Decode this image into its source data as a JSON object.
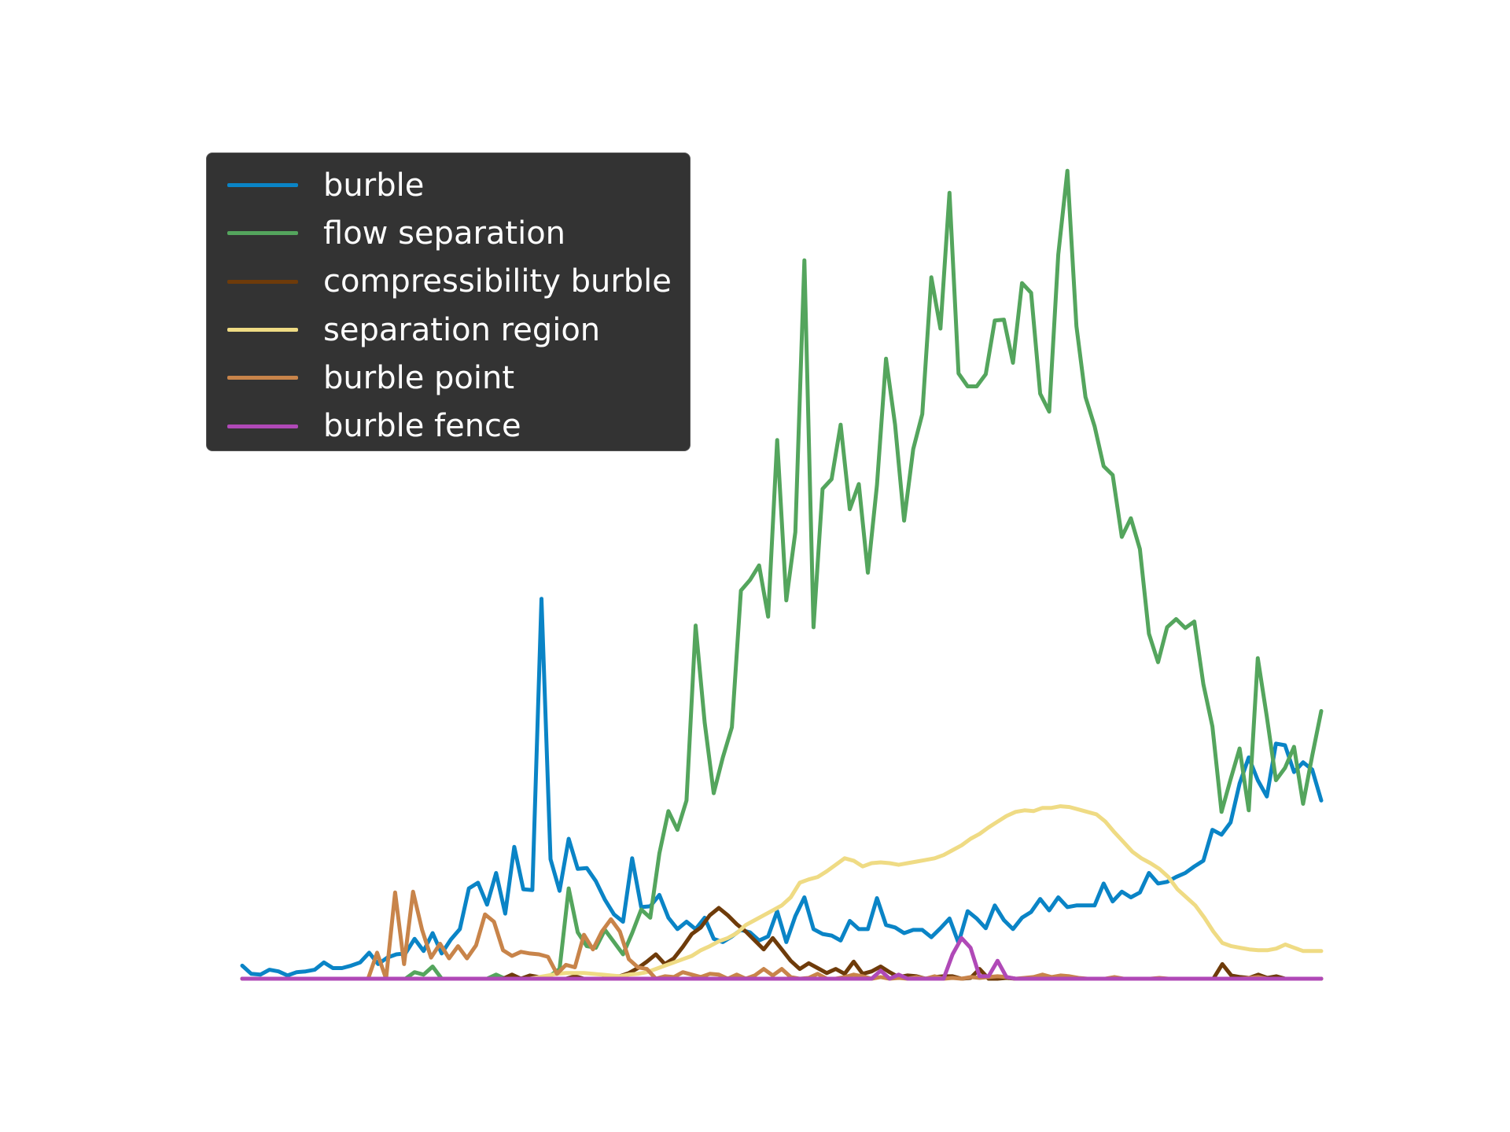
{
  "chart_data": {
    "type": "line",
    "title": "",
    "xlabel": "",
    "ylabel": "",
    "axes_visible": false,
    "grid": false,
    "legend_position": "upper-left",
    "legend_background": "#333333",
    "legend_text_color": "#ffffff",
    "x_range": [
      0,
      120
    ],
    "y_range": [
      0,
      1
    ],
    "series": [
      {
        "name": "burble",
        "color": "#0a84c6",
        "values": [
          0.016,
          0.006,
          0.005,
          0.011,
          0.009,
          0.004,
          0.008,
          0.009,
          0.011,
          0.02,
          0.013,
          0.013,
          0.016,
          0.02,
          0.032,
          0.018,
          0.026,
          0.03,
          0.031,
          0.049,
          0.034,
          0.056,
          0.031,
          0.048,
          0.061,
          0.111,
          0.118,
          0.091,
          0.13,
          0.08,
          0.162,
          0.11,
          0.109,
          0.467,
          0.147,
          0.108,
          0.172,
          0.135,
          0.136,
          0.12,
          0.097,
          0.079,
          0.07,
          0.148,
          0.088,
          0.089,
          0.103,
          0.075,
          0.061,
          0.07,
          0.061,
          0.075,
          0.049,
          0.045,
          0.052,
          0.06,
          0.057,
          0.047,
          0.052,
          0.083,
          0.045,
          0.077,
          0.1,
          0.061,
          0.055,
          0.053,
          0.047,
          0.071,
          0.061,
          0.061,
          0.099,
          0.066,
          0.063,
          0.056,
          0.06,
          0.06,
          0.051,
          0.062,
          0.074,
          0.044,
          0.083,
          0.074,
          0.062,
          0.09,
          0.072,
          0.061,
          0.075,
          0.082,
          0.098,
          0.084,
          0.1,
          0.088,
          0.09,
          0.09,
          0.09,
          0.117,
          0.095,
          0.107,
          0.1,
          0.106,
          0.13,
          0.117,
          0.119,
          0.125,
          0.13,
          0.138,
          0.145,
          0.183,
          0.177,
          0.192,
          0.24,
          0.272,
          0.244,
          0.224,
          0.289,
          0.287,
          0.254,
          0.266,
          0.257,
          0.219
        ],
        "x_end": 120
      },
      {
        "name": "flow separation",
        "color": "#54a55d",
        "values": [
          0,
          0,
          0,
          0,
          0,
          0,
          0,
          0,
          0,
          0,
          0,
          0,
          0,
          0,
          0,
          0,
          0,
          0,
          0,
          0.008,
          0.005,
          0.015,
          0,
          0,
          0,
          0,
          0,
          0,
          0.005,
          0,
          0,
          0,
          0,
          0,
          0.004,
          0.012,
          0.111,
          0.057,
          0.04,
          0.038,
          0.06,
          0.045,
          0.03,
          0.056,
          0.085,
          0.075,
          0.154,
          0.206,
          0.183,
          0.219,
          0.434,
          0.315,
          0.228,
          0.272,
          0.309,
          0.477,
          0.49,
          0.508,
          0.445,
          0.662,
          0.465,
          0.549,
          0.883,
          0.432,
          0.602,
          0.614,
          0.681,
          0.577,
          0.608,
          0.499,
          0.607,
          0.762,
          0.681,
          0.563,
          0.651,
          0.694,
          0.862,
          0.799,
          0.966,
          0.744,
          0.728,
          0.728,
          0.743,
          0.809,
          0.81,
          0.757,
          0.855,
          0.843,
          0.719,
          0.697,
          0.89,
          0.993,
          0.802,
          0.715,
          0.679,
          0.63,
          0.619,
          0.543,
          0.566,
          0.528,
          0.424,
          0.389,
          0.432,
          0.442,
          0.431,
          0.439,
          0.362,
          0.31,
          0.205,
          0.245,
          0.283,
          0.207,
          0.394,
          0.322,
          0.244,
          0.259,
          0.285,
          0.215,
          0.274,
          0.329
        ],
        "x_end": 120
      },
      {
        "name": "compressibility burble",
        "color": "#6e3b0a",
        "values": [
          0,
          0,
          0,
          0,
          0,
          0,
          0,
          0,
          0,
          0,
          0,
          0,
          0,
          0,
          0,
          0,
          0,
          0,
          0,
          0,
          0,
          0,
          0,
          0,
          0,
          0,
          0,
          0,
          0,
          0,
          0.005,
          0.0,
          0.004,
          0.002,
          0.0,
          0.0,
          0.0,
          0.003,
          0.0,
          0.0,
          0.0,
          0.003,
          0.003,
          0.007,
          0.013,
          0.021,
          0.03,
          0.018,
          0.025,
          0.039,
          0.055,
          0.063,
          0.078,
          0.087,
          0.078,
          0.067,
          0.058,
          0.047,
          0.036,
          0.05,
          0.036,
          0.022,
          0.012,
          0.019,
          0.013,
          0.007,
          0.012,
          0.006,
          0.021,
          0.006,
          0.009,
          0.015,
          0.008,
          0.002,
          0.004,
          0.003,
          0.0,
          0.002,
          0.003,
          0.003,
          0.0,
          0.001,
          0.012,
          0.0,
          0.0,
          0.001,
          0.0,
          0.0,
          0.001,
          0.0,
          0.0,
          0.0,
          0.002,
          0.0,
          0.0,
          0.0,
          0.0,
          0.0,
          0.0,
          0.0,
          0.0,
          0.0,
          0.0,
          0.0,
          0.0,
          0.0,
          0.0,
          0.0,
          0.0,
          0.018,
          0.004,
          0.002,
          0.001,
          0.005,
          0.001,
          0.003,
          0.0,
          0.0,
          0.0,
          0.0,
          0.0
        ],
        "x_end": 120
      },
      {
        "name": "separation region",
        "color": "#efdb84",
        "values": [
          0,
          0,
          0,
          0,
          0,
          0,
          0,
          0,
          0,
          0,
          0,
          0,
          0,
          0,
          0,
          0,
          0,
          0,
          0,
          0,
          0,
          0,
          0,
          0,
          0,
          0,
          0,
          0,
          0,
          0,
          0,
          0,
          0,
          0.002,
          0.004,
          0.006,
          0.007,
          0.007,
          0.007,
          0.006,
          0.005,
          0.004,
          0.003,
          0.005,
          0.006,
          0.008,
          0.012,
          0.016,
          0.02,
          0.024,
          0.028,
          0.035,
          0.04,
          0.046,
          0.05,
          0.056,
          0.066,
          0.072,
          0.078,
          0.084,
          0.09,
          0.1,
          0.118,
          0.122,
          0.125,
          0.132,
          0.14,
          0.148,
          0.145,
          0.138,
          0.142,
          0.143,
          0.142,
          0.14,
          0.142,
          0.144,
          0.146,
          0.148,
          0.152,
          0.158,
          0.164,
          0.172,
          0.178,
          0.186,
          0.193,
          0.2,
          0.205,
          0.207,
          0.206,
          0.21,
          0.21,
          0.212,
          0.211,
          0.208,
          0.205,
          0.202,
          0.193,
          0.18,
          0.168,
          0.156,
          0.148,
          0.142,
          0.135,
          0.125,
          0.11,
          0.1,
          0.09,
          0.075,
          0.058,
          0.044,
          0.04,
          0.038,
          0.036,
          0.035,
          0.035,
          0.037,
          0.042,
          0.038,
          0.034,
          0.034,
          0.034
        ],
        "x_end": 120
      },
      {
        "name": "burble point",
        "color": "#c8844a",
        "values": [
          0,
          0,
          0,
          0,
          0,
          0,
          0,
          0,
          0,
          0,
          0,
          0,
          0,
          0,
          0,
          0.032,
          0.0,
          0.106,
          0.018,
          0.107,
          0.06,
          0.026,
          0.043,
          0.025,
          0.04,
          0.025,
          0.041,
          0.079,
          0.07,
          0.035,
          0.028,
          0.033,
          0.031,
          0.03,
          0.027,
          0.006,
          0.017,
          0.014,
          0.054,
          0.036,
          0.058,
          0.073,
          0.058,
          0.024,
          0.014,
          0.012,
          0.0,
          0.003,
          0.002,
          0.008,
          0.005,
          0.002,
          0.006,
          0.005,
          0.0,
          0.005,
          0.0,
          0.004,
          0.012,
          0.004,
          0.012,
          0.002,
          0.0,
          0.001,
          0.006,
          0.0,
          0.0,
          0.002,
          0.005,
          0.003,
          0.0,
          0.002,
          0.0,
          0.001,
          0.0,
          0.002,
          0.0,
          0.003,
          0.0,
          0.001,
          0.0,
          0.002,
          0.001,
          0.002,
          0.003,
          0.002,
          0.0,
          0.001,
          0.002,
          0.005,
          0.002,
          0.004,
          0.003,
          0.001,
          0.0,
          0.0,
          0.0,
          0.002,
          0.0,
          0.0,
          0.0,
          0.0,
          0.001,
          0.0,
          0.0,
          0.0,
          0.0,
          0.0,
          0.0,
          0.0,
          0.0,
          0.0,
          0.001,
          0.002,
          0.0,
          0.0,
          0.0,
          0.0,
          0.0,
          0.0,
          0.0
        ],
        "x_end": 120
      },
      {
        "name": "burble fence",
        "color": "#b049b7",
        "values": [
          0,
          0,
          0,
          0,
          0,
          0,
          0,
          0,
          0,
          0,
          0,
          0,
          0,
          0,
          0,
          0,
          0,
          0,
          0,
          0,
          0,
          0,
          0,
          0,
          0,
          0,
          0,
          0,
          0,
          0,
          0,
          0,
          0,
          0,
          0,
          0,
          0,
          0,
          0,
          0,
          0,
          0,
          0,
          0,
          0,
          0,
          0,
          0,
          0,
          0,
          0,
          0,
          0,
          0,
          0,
          0,
          0,
          0,
          0,
          0,
          0,
          0,
          0,
          0,
          0,
          0,
          0,
          0,
          0,
          0,
          0,
          0.01,
          0.0,
          0.005,
          0.0,
          0.0,
          0.0,
          0.0,
          0.0,
          0.03,
          0.05,
          0.038,
          0.003,
          0.003,
          0.022,
          0.002,
          0.0,
          0.0,
          0.0,
          0.0,
          0.0,
          0.0,
          0.0,
          0.0,
          0.0,
          0.0,
          0.0,
          0.0,
          0.0,
          0.0,
          0.0,
          0.0,
          0.0,
          0.0,
          0.0,
          0.0,
          0.0,
          0.0,
          0.0,
          0.0,
          0.0,
          0.0,
          0.0,
          0.0,
          0.0,
          0.0,
          0.0,
          0.0,
          0.0,
          0.0,
          0.0
        ],
        "x_end": 120
      }
    ]
  }
}
